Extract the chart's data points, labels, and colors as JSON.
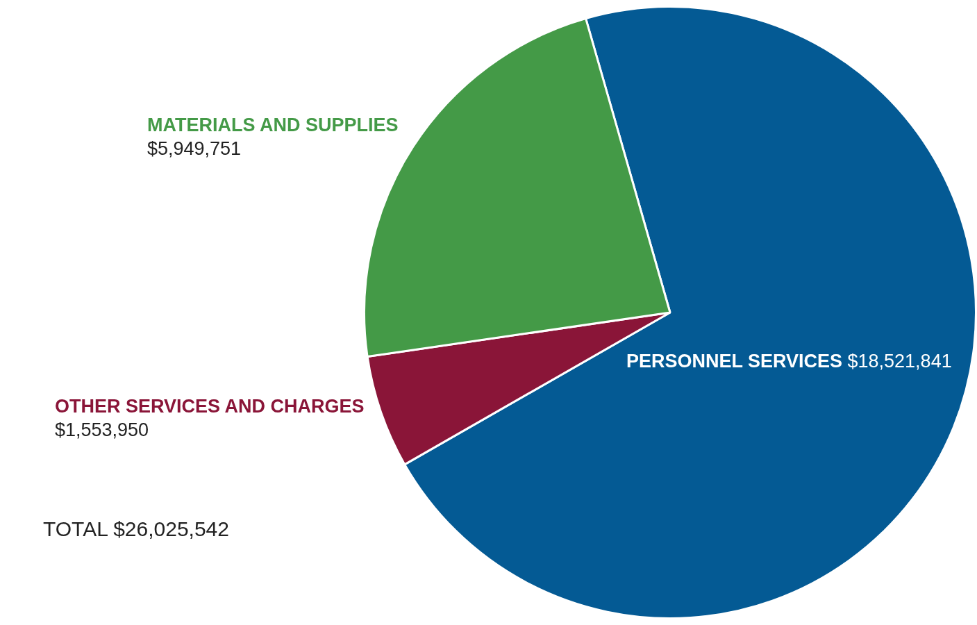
{
  "chart_data": {
    "type": "pie",
    "categories": [
      "PERSONNEL SERVICES",
      "OTHER SERVICES AND CHARGES",
      "MATERIALS AND SUPPLIES"
    ],
    "values": [
      18521841,
      1553950,
      5949751
    ],
    "colors": [
      "#045a94",
      "#8a1538",
      "#449a47"
    ],
    "value_labels": [
      "$18,521,841",
      "$1,553,950",
      "$5,949,751"
    ],
    "annotations": [
      "TOTAL $26,025,542"
    ]
  }
}
